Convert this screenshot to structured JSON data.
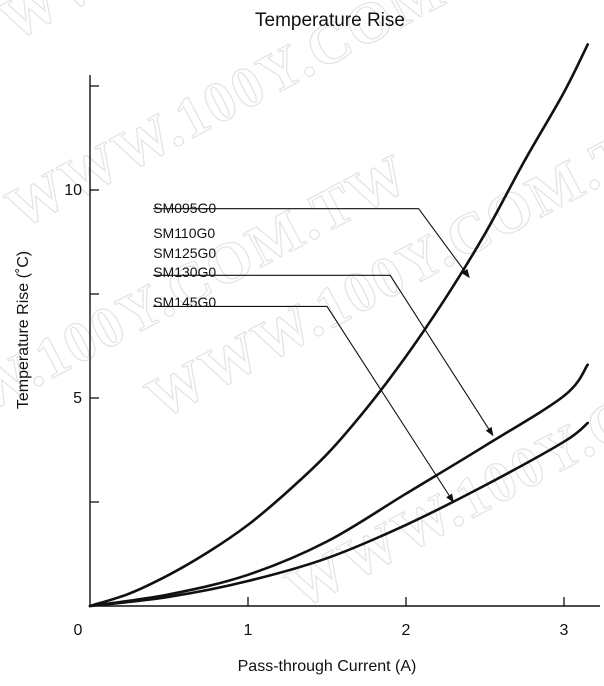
{
  "watermark": "WWW.100Y.COM.TW",
  "chart_data": {
    "type": "line",
    "title": "Temperature Rise",
    "xlabel": "Pass-through Current (A)",
    "ylabel": "Temperature Rise (˚C)",
    "xlim": [
      0,
      3.15
    ],
    "ylim": [
      0,
      13
    ],
    "x_ticks": [
      0,
      1,
      2,
      3
    ],
    "x_tick_labels": [
      "0",
      "1",
      "2",
      "3"
    ],
    "y_ticks": [
      0,
      2.5,
      5,
      7.5,
      10,
      12.5
    ],
    "y_tick_labels": [
      "",
      "",
      "5",
      "",
      "10",
      ""
    ],
    "grid": false,
    "color": "#111111",
    "series": [
      {
        "x": [
          0,
          0.25,
          0.5,
          0.75,
          1.0,
          1.25,
          1.5,
          1.75,
          2.0,
          2.25,
          2.5,
          2.75,
          3.0,
          3.15
        ],
        "y": [
          0,
          0.3,
          0.75,
          1.3,
          1.95,
          2.75,
          3.65,
          4.75,
          6.0,
          7.4,
          8.95,
          10.7,
          12.35,
          13.5
        ]
      },
      {
        "x": [
          0,
          0.5,
          1.0,
          1.5,
          2.0,
          2.5,
          3.0,
          3.15
        ],
        "y": [
          0,
          0.28,
          0.75,
          1.55,
          2.7,
          3.85,
          5.05,
          5.8
        ]
      },
      {
        "x": [
          0,
          0.5,
          1.0,
          1.5,
          2.0,
          2.5,
          3.0,
          3.15
        ],
        "y": [
          0,
          0.22,
          0.6,
          1.15,
          1.95,
          2.9,
          3.95,
          4.4
        ]
      }
    ],
    "annotations": [
      {
        "text": "SM095G0",
        "line_y": 9.55,
        "x0": 0.4,
        "x1": 2.08,
        "tx": 2.4,
        "ty": 7.9
      },
      {
        "text": "SM110G0",
        "line_y": null
      },
      {
        "text": "SM125G0",
        "line_y": null
      },
      {
        "text": "SM130G0",
        "line_y": 7.95,
        "x0": 0.4,
        "x1": 1.9,
        "tx": 2.55,
        "ty": 4.1
      },
      {
        "text": "SM145G0",
        "line_y": 7.2,
        "x0": 0.4,
        "x1": 1.5,
        "tx": 2.3,
        "ty": 2.5
      }
    ]
  }
}
